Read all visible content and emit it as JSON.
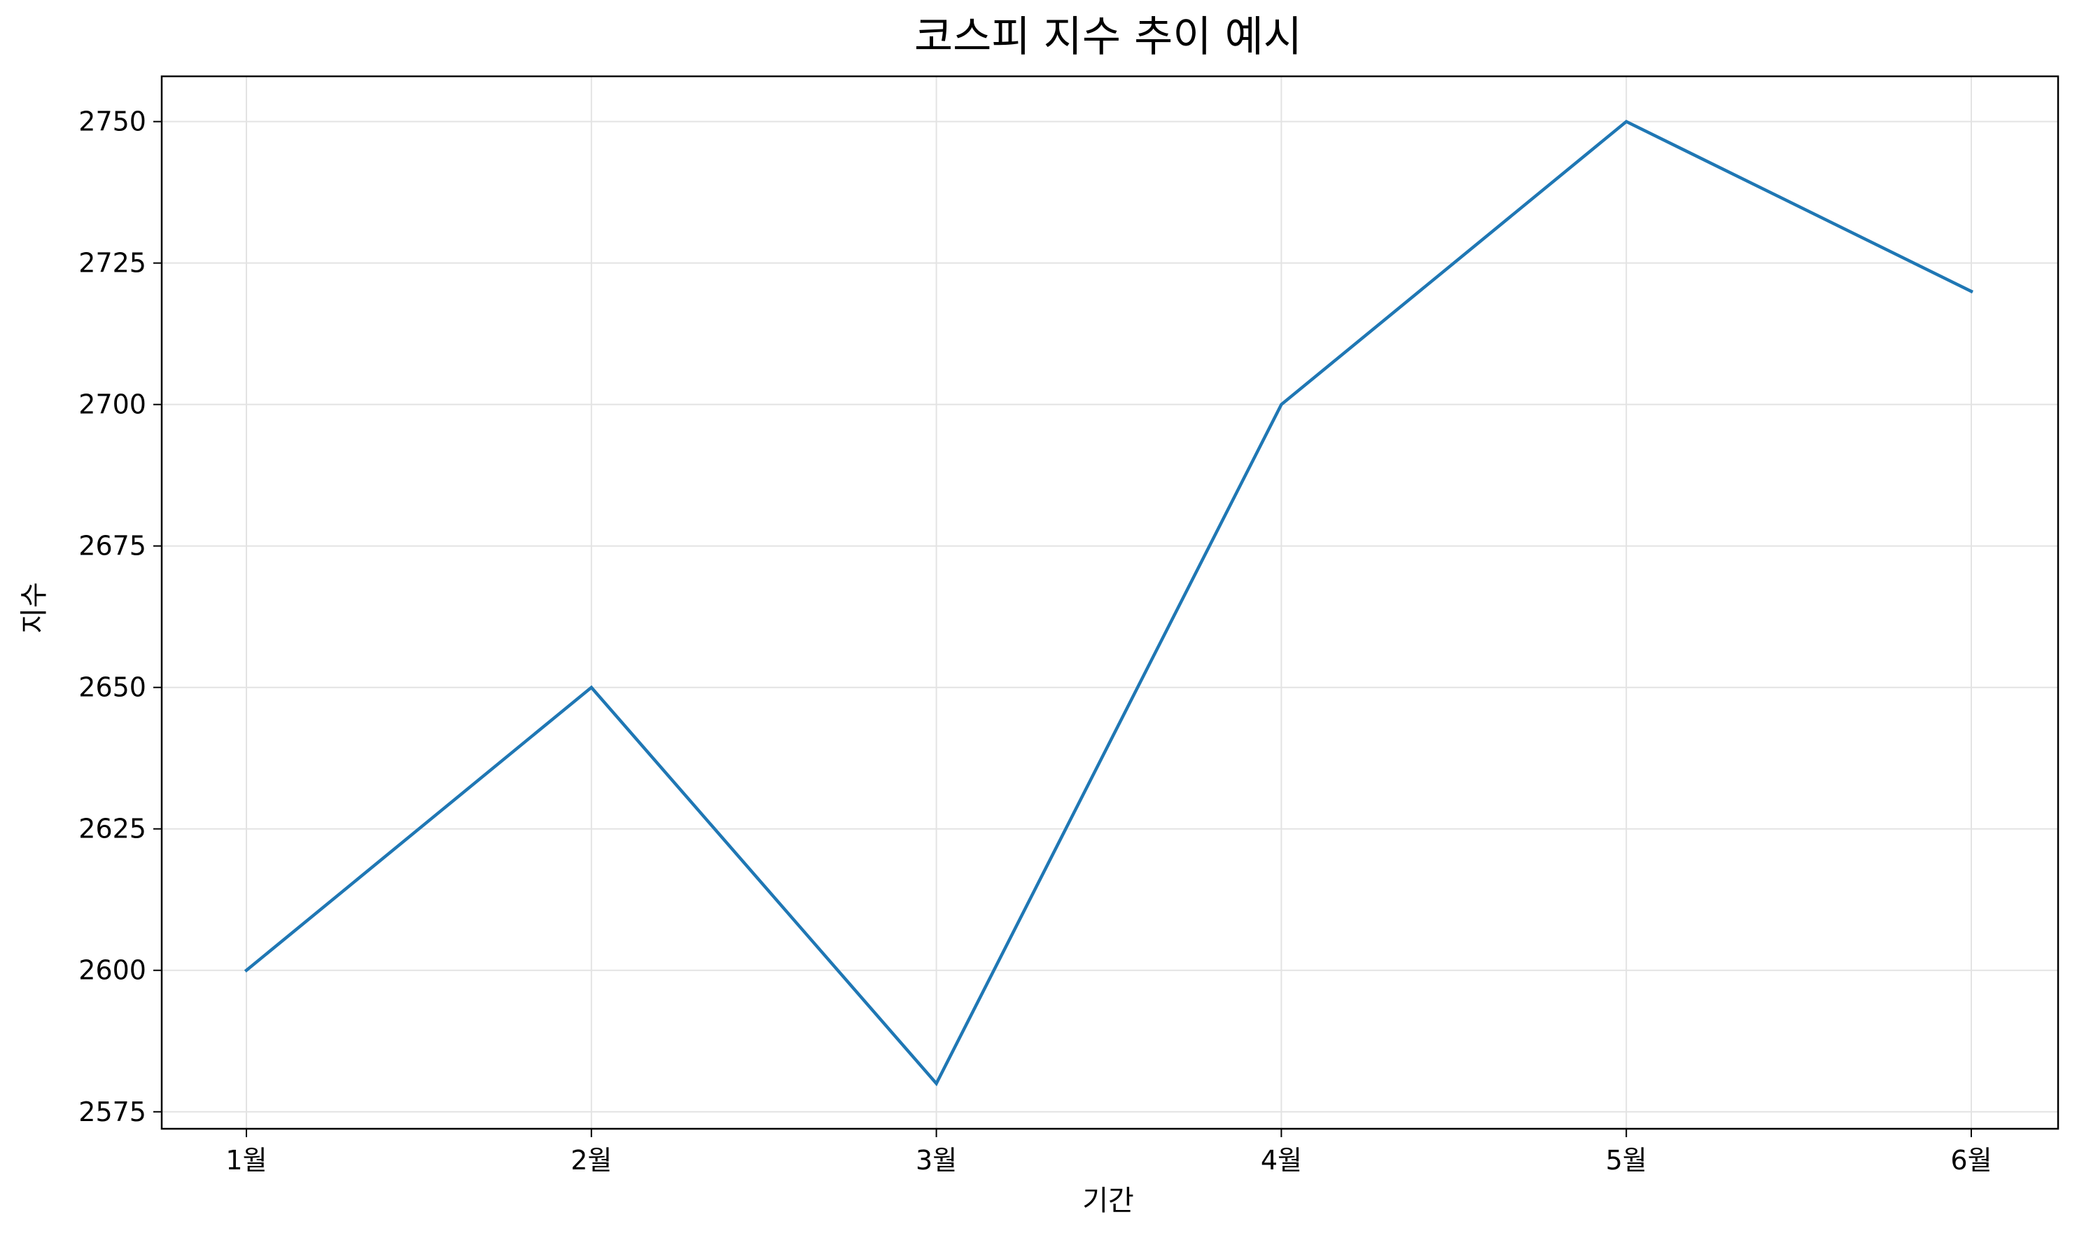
{
  "chart_data": {
    "type": "line",
    "title": "코스피 지수 추이 예시",
    "xlabel": "기간",
    "ylabel": "지수",
    "categories": [
      "1월",
      "2월",
      "3월",
      "4월",
      "5월",
      "6월"
    ],
    "series": [
      {
        "values": [
          2600,
          2650,
          2580,
          2700,
          2750,
          2720
        ]
      }
    ],
    "yticks": [
      2575,
      2600,
      2625,
      2650,
      2675,
      2700,
      2725,
      2750
    ],
    "ylim": [
      2572,
      2758
    ],
    "grid": true,
    "line_color": "#1f77b4"
  }
}
